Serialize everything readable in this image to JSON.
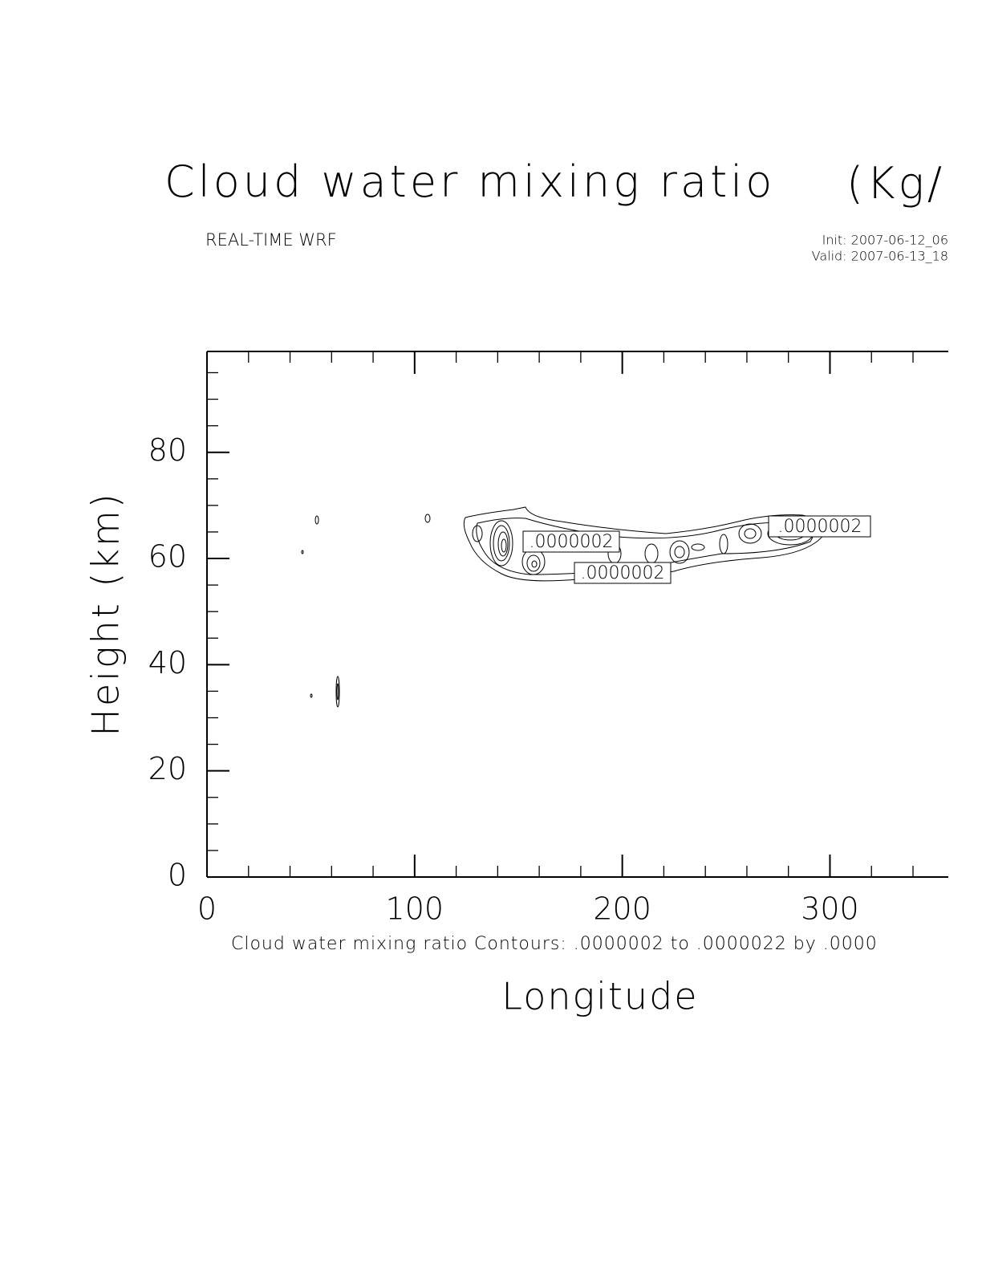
{
  "chart_data": {
    "type": "contour",
    "title": "Cloud water mixing ratio",
    "title_units": "(Kg/",
    "subtitle": "REAL-TIME WRF",
    "init_label": "Init: 2007-06-12_06",
    "valid_label": "Valid: 2007-06-13_18",
    "contour_note": "Cloud water mixing ratio Contours: .0000002 to .0000022 by .0000",
    "xlabel": "Longitude",
    "ylabel": "Height (km)",
    "contour_labels": [
      ".0000002",
      ".0000002",
      ".0000002"
    ],
    "xlim": [
      0,
      357
    ],
    "ylim": [
      0,
      99
    ],
    "xticks": [
      0,
      100,
      200,
      300
    ],
    "xminorticks": [
      20,
      40,
      60,
      80,
      120,
      140,
      160,
      180,
      220,
      240,
      260,
      280,
      320,
      340
    ],
    "yticks": [
      0,
      20,
      40,
      60,
      80
    ],
    "yminorticks": [
      5,
      10,
      15,
      25,
      30,
      35,
      45,
      50,
      55,
      65,
      70,
      75,
      85,
      90,
      95
    ]
  }
}
